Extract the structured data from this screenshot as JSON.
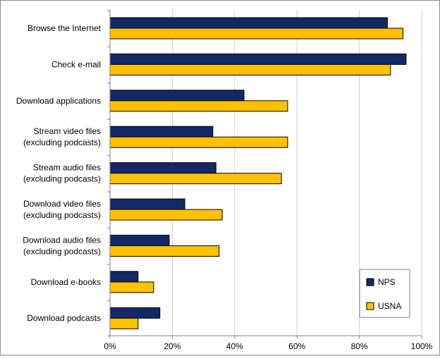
{
  "chart_data": {
    "type": "bar",
    "orientation": "horizontal",
    "title": "",
    "xlabel": "",
    "ylabel": "",
    "xlim": [
      0,
      100
    ],
    "x_ticks": [
      0,
      20,
      40,
      60,
      80,
      100
    ],
    "x_tick_format": "percent",
    "grid": true,
    "legend_position": "bottom-right",
    "categories": [
      [
        "Browse the Internet"
      ],
      [
        "Check e-mail"
      ],
      [
        "Download applications"
      ],
      [
        "Stream video files",
        "(excluding podcasts)"
      ],
      [
        "Stream audio files",
        "(excluding podcasts)"
      ],
      [
        "Download video files",
        "(excluding podcasts)"
      ],
      [
        "Download audio files",
        "(excluding podcasts)"
      ],
      [
        "Download e-books"
      ],
      [
        "Download podcasts"
      ]
    ],
    "series": [
      {
        "name": "NPS",
        "color": "#142868",
        "values": [
          89,
          95,
          43,
          33,
          34,
          24,
          19,
          9,
          16
        ]
      },
      {
        "name": "USNA",
        "color": "#FFC000",
        "values": [
          94,
          90,
          57,
          57,
          55,
          36,
          35,
          14,
          9
        ]
      }
    ]
  }
}
